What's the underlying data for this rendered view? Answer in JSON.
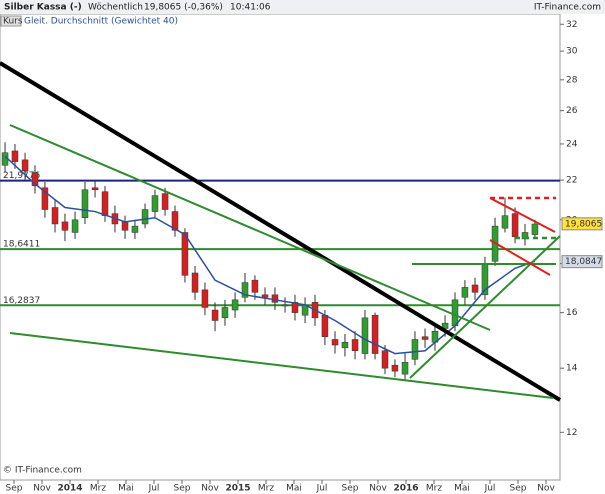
{
  "header": {
    "title": "Silber Kassa (-)",
    "interval": "Wöchentlich",
    "quote": "19,8065 (-0,36%)",
    "time": "10:41:06",
    "source": "IT-Finance.com"
  },
  "legend": {
    "price": "Kurs",
    "average": "Gleit. Durchschnitt (Gewichtet 40)"
  },
  "footer": "© IT-Finance.com",
  "chart_data": {
    "type": "candlestick",
    "log_scale": true,
    "grid": false,
    "ylim": [
      10.7,
      32.8
    ],
    "yticks": [
      12,
      14,
      16,
      18,
      20,
      22,
      24,
      26,
      28,
      30,
      32
    ],
    "xlim": [
      -1,
      39
    ],
    "xticks": [
      {
        "value": 0,
        "label": "Sep"
      },
      {
        "value": 2,
        "label": "Nov"
      },
      {
        "value": 4,
        "label": "2014"
      },
      {
        "value": 6,
        "label": "Mrz"
      },
      {
        "value": 8,
        "label": "Mai"
      },
      {
        "value": 10,
        "label": "Jul"
      },
      {
        "value": 12,
        "label": "Sep"
      },
      {
        "value": 14,
        "label": "Nov"
      },
      {
        "value": 16,
        "label": "2015"
      },
      {
        "value": 18,
        "label": "Mrz"
      },
      {
        "value": 20,
        "label": "Mai"
      },
      {
        "value": 22,
        "label": "Jul"
      },
      {
        "value": 24,
        "label": "Sep"
      },
      {
        "value": 26,
        "label": "Nov"
      },
      {
        "value": 28,
        "label": "2016"
      },
      {
        "value": 30,
        "label": "Mrz"
      },
      {
        "value": 32,
        "label": "Mai"
      },
      {
        "value": 34,
        "label": "Jul"
      },
      {
        "value": 36,
        "label": "Sep"
      },
      {
        "value": 38,
        "label": "Nov"
      }
    ],
    "up_color": "#2f9e2f",
    "down_color": "#d42020",
    "x": [
      -0.64,
      0.07,
      0.79,
      1.5,
      2.21,
      2.93,
      3.64,
      4.36,
      5.07,
      5.79,
      6.5,
      7.21,
      7.93,
      8.64,
      9.36,
      10.07,
      10.79,
      11.5,
      12.21,
      12.93,
      13.64,
      14.36,
      15.07,
      15.79,
      16.5,
      17.21,
      17.93,
      18.64,
      19.36,
      20.07,
      20.79,
      21.5,
      22.21,
      22.93,
      23.64,
      24.36,
      25.07,
      25.79,
      26.5,
      27.21,
      27.93,
      28.64,
      29.36,
      30.07,
      30.79,
      31.5,
      32.21,
      32.93,
      33.64,
      34.36,
      35.07,
      35.79,
      36.5,
      37.21
    ],
    "open": [
      22.8,
      23.6,
      23.1,
      22.4,
      21.6,
      20.6,
      19.9,
      19.4,
      20.1,
      21.6,
      21.4,
      20.3,
      19.9,
      19.4,
      19.8,
      20.4,
      21.3,
      20.4,
      19.4,
      17.6,
      16.9,
      16.1,
      15.8,
      16.1,
      16.6,
      17.3,
      16.7,
      16.7,
      16.3,
      16.4,
      15.9,
      16.4,
      15.9,
      15.0,
      14.7,
      15.0,
      14.5,
      15.9,
      14.6,
      14.1,
      13.8,
      14.3,
      15.1,
      14.9,
      15.4,
      15.5,
      16.6,
      17.1,
      16.7,
      18.1,
      19.6,
      20.3,
      19.1,
      19.3
    ],
    "high": [
      24.1,
      24.0,
      23.5,
      22.8,
      21.9,
      21.0,
      20.3,
      20.4,
      21.9,
      22.0,
      21.7,
      20.7,
      20.2,
      20.0,
      20.8,
      21.5,
      21.6,
      20.7,
      19.6,
      17.9,
      17.2,
      16.4,
      16.5,
      16.8,
      17.6,
      17.5,
      17.0,
      17.0,
      16.6,
      16.7,
      16.6,
      16.7,
      16.1,
      15.3,
      15.2,
      15.3,
      16.1,
      16.0,
      14.8,
      14.3,
      14.5,
      15.3,
      15.4,
      15.6,
      15.9,
      16.8,
      17.3,
      17.4,
      18.3,
      20.1,
      21.1,
      20.6,
      19.8,
      20.0
    ],
    "low": [
      22.4,
      22.6,
      22.0,
      21.3,
      20.1,
      19.4,
      19.0,
      19.1,
      19.8,
      21.1,
      19.9,
      19.4,
      19.1,
      19.1,
      19.6,
      20.1,
      20.2,
      19.2,
      17.2,
      16.5,
      15.9,
      15.3,
      15.5,
      15.8,
      16.4,
      16.5,
      16.3,
      16.1,
      16.0,
      15.7,
      15.6,
      15.5,
      14.8,
      14.5,
      14.4,
      14.3,
      14.3,
      14.3,
      13.8,
      13.7,
      13.6,
      14.1,
      14.7,
      14.6,
      15.1,
      15.3,
      16.3,
      16.5,
      16.5,
      17.9,
      19.4,
      18.9,
      18.8,
      19.1
    ],
    "close": [
      23.5,
      23.0,
      22.5,
      21.7,
      20.5,
      19.8,
      19.5,
      20.0,
      21.5,
      21.5,
      20.2,
      19.8,
      19.5,
      19.7,
      20.5,
      21.2,
      20.5,
      19.5,
      17.5,
      16.8,
      16.2,
      15.7,
      16.2,
      16.5,
      17.2,
      16.8,
      16.6,
      16.4,
      16.3,
      16.0,
      16.3,
      15.8,
      15.1,
      14.8,
      14.9,
      14.6,
      15.8,
      14.5,
      14.0,
      13.9,
      14.2,
      15.0,
      15.0,
      15.3,
      15.6,
      16.5,
      17.0,
      16.8,
      18.0,
      19.7,
      20.2,
      19.2,
      19.4,
      19.8
    ],
    "average": {
      "color": "#2a4fa0",
      "x": [
        -0.64,
        1.5,
        3.64,
        5.79,
        7.93,
        10.07,
        12.21,
        14.36,
        16.5,
        18.64,
        20.79,
        22.93,
        25.07,
        27.21,
        29.36,
        31.5,
        33.64,
        35.79,
        37.21
      ],
      "values": [
        23.3,
        21.8,
        20.6,
        20.4,
        19.9,
        20.1,
        19.3,
        17.3,
        16.7,
        16.5,
        16.3,
        15.7,
        15.0,
        14.5,
        14.6,
        15.5,
        16.9,
        17.8,
        18.1
      ]
    },
    "levels": [
      {
        "value": 21.9776,
        "label": "21,9776",
        "color": "#1a237e"
      },
      {
        "value": 18.6411,
        "label": "18,6411",
        "color": "#2e8b2e"
      },
      {
        "value": 16.2837,
        "label": "16,2837",
        "color": "#2e8b2e"
      }
    ],
    "price_tags": [
      {
        "value": 19.8065,
        "label": "19,8065",
        "color": "#ffe23a"
      },
      {
        "value": 18.0847,
        "label": "18,0847",
        "color": "#d6dbe8"
      }
    ]
  }
}
